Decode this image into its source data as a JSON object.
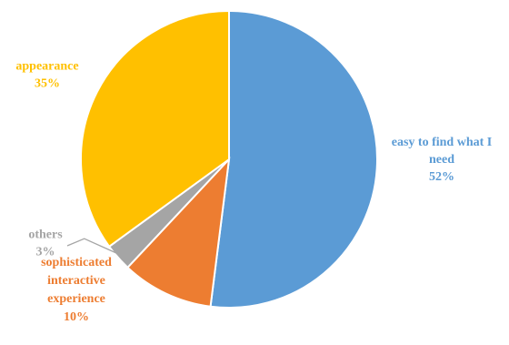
{
  "chart_data": {
    "type": "pie",
    "start_angle_deg": 0,
    "direction": "clockwise",
    "slices": [
      {
        "label": "easy to find  what I need",
        "label_lines": [
          "easy to find  what I",
          "need"
        ],
        "value": 52,
        "value_label": "52%",
        "color": "#5B9BD5"
      },
      {
        "label": "sophisticated interactive experience",
        "label_lines": [
          "sophisticated",
          "interactive",
          "experience"
        ],
        "value": 10,
        "value_label": "10%",
        "color": "#ED7D31"
      },
      {
        "label": "others",
        "label_lines": [
          "others"
        ],
        "value": 3,
        "value_label": "3%",
        "color": "#A5A5A5"
      },
      {
        "label": "appearance",
        "label_lines": [
          "appearance"
        ],
        "value": 35,
        "value_label": "35%",
        "color": "#FFC000"
      }
    ],
    "legend": false,
    "leader_lines": [
      "others"
    ]
  }
}
